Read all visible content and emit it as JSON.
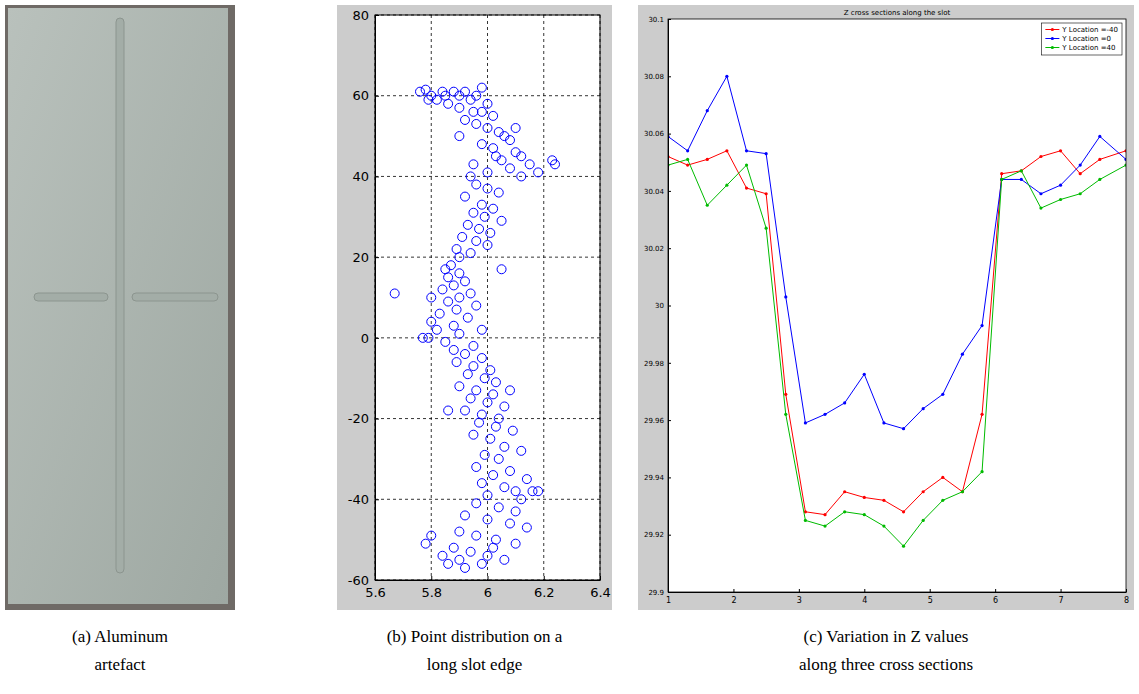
{
  "photo": {
    "caption": "(a) Aluminum artefact"
  },
  "chart_data": [
    {
      "type": "scatter",
      "caption": "(b) Point distribution on a long slot edge",
      "color": "#0000ff",
      "marker": "circle",
      "grid": true,
      "xlim": [
        5.6,
        6.4
      ],
      "xticks": [
        5.6,
        5.8,
        6,
        6.2,
        6.4
      ],
      "ylim": [
        -60,
        80
      ],
      "yticks": [
        -60,
        -40,
        -20,
        0,
        20,
        40,
        60,
        80
      ],
      "x": [
        5.76,
        5.78,
        5.8,
        5.82,
        5.85,
        5.88,
        5.9,
        5.92,
        5.94,
        5.96,
        5.98,
        5.86,
        5.9,
        5.95,
        6.0,
        6.02,
        5.84,
        5.79,
        5.92,
        5.96,
        6.0,
        6.04,
        6.06,
        6.08,
        5.98,
        6.02,
        6.1,
        6.12,
        6.05,
        5.95,
        6.15,
        6.23,
        6.24,
        6.08,
        6.0,
        5.94,
        6.12,
        6.18,
        6.03,
        5.9,
        6.1,
        5.98,
        5.96,
        6.0,
        6.04,
        5.92,
        5.98,
        6.02,
        5.95,
        5.99,
        6.05,
        5.93,
        5.97,
        6.01,
        5.91,
        5.96,
        6.0,
        5.89,
        5.94,
        6.05,
        5.9,
        5.87,
        5.85,
        5.9,
        5.86,
        5.92,
        5.88,
        5.84,
        5.94,
        5.67,
        5.9,
        5.8,
        5.86,
        5.96,
        5.89,
        5.83,
        5.93,
        5.8,
        5.88,
        5.98,
        5.9,
        5.77,
        5.79,
        5.85,
        5.95,
        5.82,
        5.88,
        5.92,
        5.98,
        5.89,
        5.95,
        6.01,
        5.93,
        5.99,
        6.03,
        5.9,
        5.96,
        6.02,
        5.94,
        6.0,
        6.06,
        5.92,
        5.98,
        6.04,
        5.86,
        6.08,
        5.97,
        6.03,
        6.09,
        5.95,
        6.01,
        6.06,
        6.12,
        5.99,
        6.04,
        5.96,
        6.08,
        6.02,
        6.14,
        5.98,
        6.06,
        6.1,
        6.16,
        6.18,
        6.0,
        6.12,
        5.96,
        6.04,
        6.1,
        5.92,
        6.0,
        6.08,
        6.14,
        5.9,
        5.96,
        5.8,
        6.03,
        6.1,
        5.78,
        5.88,
        5.94,
        6.0,
        6.06,
        5.86,
        5.92,
        5.98,
        5.9,
        6.02,
        5.84
      ],
      "values": [
        61,
        61.5,
        60,
        59,
        60,
        61,
        60,
        61,
        59,
        60,
        62,
        58,
        57,
        56,
        58,
        55,
        61,
        59,
        54,
        53,
        52,
        51,
        50,
        49,
        48,
        47,
        46,
        45,
        44,
        43,
        43,
        44,
        43,
        42,
        41,
        40,
        40,
        41,
        45,
        50,
        52,
        56,
        38,
        37,
        36,
        35,
        33,
        32,
        31,
        30,
        29,
        28,
        27,
        26,
        25,
        24,
        23,
        22,
        21,
        17,
        20,
        18,
        17,
        16,
        15,
        14,
        13,
        12,
        11,
        11,
        10,
        10,
        9,
        8,
        7,
        6,
        5,
        4,
        3,
        2,
        1,
        0,
        0,
        -1,
        -2,
        2,
        -3,
        -4,
        -5,
        -6,
        -7,
        -8,
        -9,
        -10,
        -11,
        -12,
        -13,
        -14,
        -15,
        -16,
        -17,
        -18,
        -19,
        -20,
        -18,
        -13,
        -21,
        -22,
        -23,
        -24,
        -25,
        -27,
        -28,
        -29,
        -30,
        -32,
        -33,
        -34,
        -35,
        -36,
        -37,
        -38,
        -38,
        -38,
        -39,
        -40,
        -41,
        -42,
        -43,
        -44,
        -45,
        -46,
        -47,
        -48,
        -49,
        -49,
        -50,
        -51,
        -51,
        -52,
        -53,
        -54,
        -55,
        -56,
        -57,
        -56,
        -55,
        -52,
        -54
      ]
    },
    {
      "type": "line",
      "title": "Z cross sections along the slot",
      "caption": "(c) Variation in Z values along three cross sections",
      "grid": false,
      "legend": "top-right",
      "marker": "point",
      "xlim": [
        1,
        8
      ],
      "xticks": [
        1,
        2,
        3,
        4,
        5,
        6,
        7,
        8
      ],
      "ylim": [
        29.9,
        30.1
      ],
      "yticks": [
        29.9,
        29.92,
        29.94,
        29.96,
        29.98,
        30,
        30.02,
        30.04,
        30.06,
        30.08,
        30.1
      ],
      "x": [
        1,
        1.3,
        1.6,
        1.9,
        2.2,
        2.5,
        2.8,
        3.1,
        3.4,
        3.7,
        4,
        4.3,
        4.6,
        4.9,
        5.2,
        5.5,
        5.8,
        6.1,
        6.4,
        6.7,
        7,
        7.3,
        7.6,
        8
      ],
      "series": [
        {
          "name": "Y Location =-40",
          "color": "#ff0000",
          "values": [
            30.052,
            30.049,
            30.051,
            30.054,
            30.041,
            30.039,
            29.969,
            29.928,
            29.927,
            29.935,
            29.933,
            29.932,
            29.928,
            29.935,
            29.94,
            29.935,
            29.962,
            30.046,
            30.047,
            30.052,
            30.054,
            30.046,
            30.051,
            30.054
          ]
        },
        {
          "name": "Y Location =0",
          "color": "#0000ff",
          "values": [
            30.059,
            30.054,
            30.068,
            30.08,
            30.054,
            30.053,
            30.003,
            29.959,
            29.962,
            29.966,
            29.976,
            29.959,
            29.957,
            29.964,
            29.969,
            29.983,
            29.993,
            30.044,
            30.044,
            30.039,
            30.042,
            30.049,
            30.059,
            30.051
          ]
        },
        {
          "name": "Y Location =40",
          "color": "#00bb00",
          "values": [
            30.049,
            30.051,
            30.035,
            30.042,
            30.049,
            30.027,
            29.962,
            29.925,
            29.923,
            29.928,
            29.927,
            29.923,
            29.916,
            29.925,
            29.932,
            29.935,
            29.942,
            30.044,
            30.047,
            30.034,
            30.037,
            30.039,
            30.044,
            30.049
          ]
        }
      ]
    }
  ]
}
